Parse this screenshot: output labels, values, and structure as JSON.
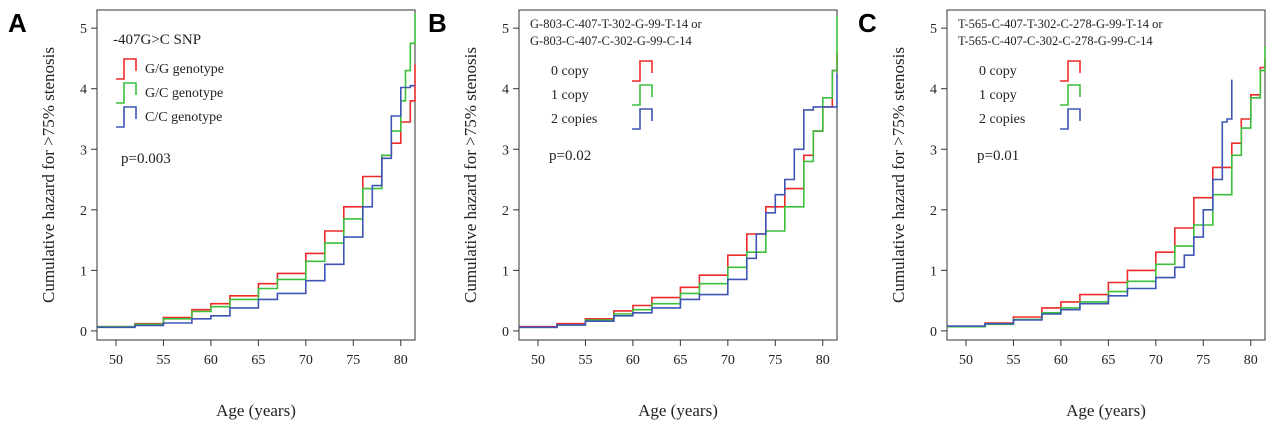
{
  "colors": {
    "red": "#ee2a2a",
    "green": "#3cbf3c",
    "blue": "#3f55b5",
    "axis": "#333333"
  },
  "chart_data": [
    {
      "type": "line",
      "panel": "A",
      "title_lines": [
        "-407G>C SNP"
      ],
      "xlabel": "Age (years)",
      "ylabel": "Cumulative hazard for >75% stenosis",
      "xlim": [
        48,
        81.5
      ],
      "ylim": [
        -0.15,
        5.3
      ],
      "xticks": [
        50,
        55,
        60,
        65,
        70,
        75,
        80
      ],
      "yticks": [
        0,
        1,
        2,
        3,
        4,
        5
      ],
      "annotation": "p=0.003",
      "legend_position": "top-left",
      "series": [
        {
          "name": "G/G genotype",
          "color": "red",
          "x": [
            48,
            52,
            55,
            58,
            60,
            62,
            65,
            67,
            70,
            72,
            74,
            76,
            78,
            79,
            80,
            81,
            81.5
          ],
          "y": [
            0.07,
            0.12,
            0.22,
            0.35,
            0.45,
            0.58,
            0.78,
            0.95,
            1.28,
            1.65,
            2.05,
            2.55,
            2.9,
            3.1,
            3.45,
            3.8,
            4.4
          ]
        },
        {
          "name": "G/C genotype",
          "color": "green",
          "x": [
            48,
            52,
            55,
            58,
            60,
            62,
            65,
            67,
            70,
            72,
            74,
            76,
            78,
            79,
            80,
            80.5,
            81,
            81.5
          ],
          "y": [
            0.07,
            0.11,
            0.2,
            0.32,
            0.4,
            0.52,
            0.7,
            0.85,
            1.15,
            1.45,
            1.85,
            2.35,
            2.9,
            3.3,
            3.8,
            4.3,
            4.75,
            5.25
          ]
        },
        {
          "name": "C/C genotype",
          "color": "blue",
          "x": [
            48,
            52,
            55,
            58,
            60,
            62,
            65,
            67,
            70,
            72,
            74,
            76,
            77,
            78,
            79,
            80,
            81,
            81.5
          ],
          "y": [
            0.06,
            0.09,
            0.13,
            0.2,
            0.25,
            0.38,
            0.52,
            0.62,
            0.83,
            1.1,
            1.55,
            2.05,
            2.4,
            2.85,
            3.55,
            4.02,
            4.05,
            4.05
          ]
        }
      ]
    },
    {
      "type": "line",
      "panel": "B",
      "title_lines": [
        "G-803-C-407-T-302-G-99-T-14 or",
        "G-803-C-407-C-302-G-99-C-14"
      ],
      "xlabel": "Age (years)",
      "ylabel": "Cumulative hazard for >75% stenosis",
      "xlim": [
        48,
        81.5
      ],
      "ylim": [
        -0.15,
        5.3
      ],
      "xticks": [
        50,
        55,
        60,
        65,
        70,
        75,
        80
      ],
      "yticks": [
        0,
        1,
        2,
        3,
        4,
        5
      ],
      "annotation": "p=0.02",
      "legend_position": "top-left",
      "series": [
        {
          "name": "0 copy",
          "color": "red",
          "x": [
            48,
            52,
            55,
            58,
            60,
            62,
            65,
            67,
            70,
            72,
            74,
            76,
            78,
            79,
            80,
            81,
            81.5
          ],
          "y": [
            0.07,
            0.12,
            0.2,
            0.33,
            0.42,
            0.55,
            0.72,
            0.92,
            1.25,
            1.6,
            2.05,
            2.35,
            2.9,
            3.3,
            3.7,
            4.3,
            4.6
          ]
        },
        {
          "name": "1 copy",
          "color": "green",
          "x": [
            48,
            52,
            55,
            58,
            60,
            62,
            65,
            67,
            70,
            72,
            74,
            76,
            78,
            79,
            80,
            81,
            81.5
          ],
          "y": [
            0.06,
            0.1,
            0.18,
            0.28,
            0.35,
            0.45,
            0.62,
            0.78,
            1.05,
            1.3,
            1.65,
            2.05,
            2.8,
            3.3,
            3.85,
            4.3,
            5.2
          ]
        },
        {
          "name": "2 copies",
          "color": "blue",
          "x": [
            48,
            52,
            55,
            58,
            60,
            62,
            65,
            67,
            70,
            72,
            73,
            74,
            75,
            76,
            77,
            78,
            79,
            80,
            81,
            81.5
          ],
          "y": [
            0.06,
            0.1,
            0.16,
            0.25,
            0.3,
            0.38,
            0.52,
            0.6,
            0.85,
            1.2,
            1.6,
            1.95,
            2.25,
            2.5,
            3.0,
            3.65,
            3.7,
            3.7,
            3.7,
            4.25
          ]
        }
      ]
    },
    {
      "type": "line",
      "panel": "C",
      "title_lines": [
        "T-565-C-407-T-302-C-278-G-99-T-14 or",
        "T-565-C-407-C-302-C-278-G-99-C-14"
      ],
      "xlabel": "Age (years)",
      "ylabel": "Cumulative hazard for >75% stenosis",
      "xlim": [
        48,
        81.5
      ],
      "ylim": [
        -0.15,
        5.3
      ],
      "xticks": [
        50,
        55,
        60,
        65,
        70,
        75,
        80
      ],
      "yticks": [
        0,
        1,
        2,
        3,
        4,
        5
      ],
      "annotation": "p=0.01",
      "legend_position": "top-left",
      "series": [
        {
          "name": "0 copy",
          "color": "red",
          "x": [
            48,
            52,
            55,
            58,
            60,
            62,
            65,
            67,
            70,
            72,
            74,
            76,
            78,
            79,
            80,
            81,
            81.5
          ],
          "y": [
            0.07,
            0.13,
            0.23,
            0.38,
            0.48,
            0.6,
            0.8,
            1.0,
            1.3,
            1.7,
            2.2,
            2.7,
            3.1,
            3.5,
            3.9,
            4.35,
            4.5
          ]
        },
        {
          "name": "1 copy",
          "color": "green",
          "x": [
            48,
            52,
            55,
            58,
            60,
            62,
            65,
            67,
            70,
            72,
            74,
            76,
            78,
            79,
            80,
            81,
            81.5
          ],
          "y": [
            0.07,
            0.11,
            0.19,
            0.3,
            0.38,
            0.48,
            0.65,
            0.82,
            1.1,
            1.4,
            1.75,
            2.25,
            2.9,
            3.35,
            3.85,
            4.3,
            4.7
          ]
        },
        {
          "name": "2 copies",
          "color": "blue",
          "x": [
            48,
            52,
            55,
            58,
            60,
            62,
            65,
            67,
            70,
            72,
            73,
            74,
            75,
            76,
            77,
            77.5,
            78
          ],
          "y": [
            0.08,
            0.12,
            0.18,
            0.28,
            0.35,
            0.45,
            0.58,
            0.7,
            0.88,
            1.05,
            1.25,
            1.55,
            2.0,
            2.5,
            3.45,
            3.5,
            4.15
          ]
        }
      ]
    }
  ]
}
